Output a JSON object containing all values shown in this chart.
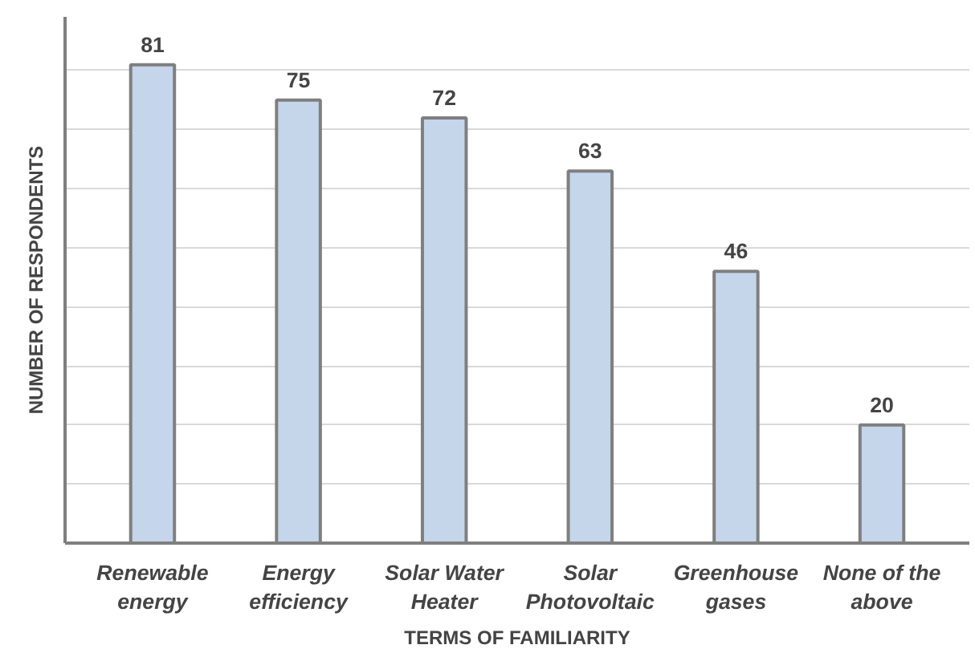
{
  "chart_data": {
    "type": "bar",
    "xlabel": "TERMS OF FAMILIARITY",
    "ylabel": "NUMBER OF RESPONDENTS",
    "categories": [
      "Renewable\nenergy",
      "Energy\nefficiency",
      "Solar Water\nHeater",
      "Solar\nPhotovoltaic",
      "Greenhouse\ngases",
      "None of the\nabove"
    ],
    "values": [
      81,
      75,
      72,
      63,
      46,
      20
    ],
    "color": "#c5d5ea",
    "grid": "y",
    "data_labels": true,
    "tick_labels": "x"
  }
}
